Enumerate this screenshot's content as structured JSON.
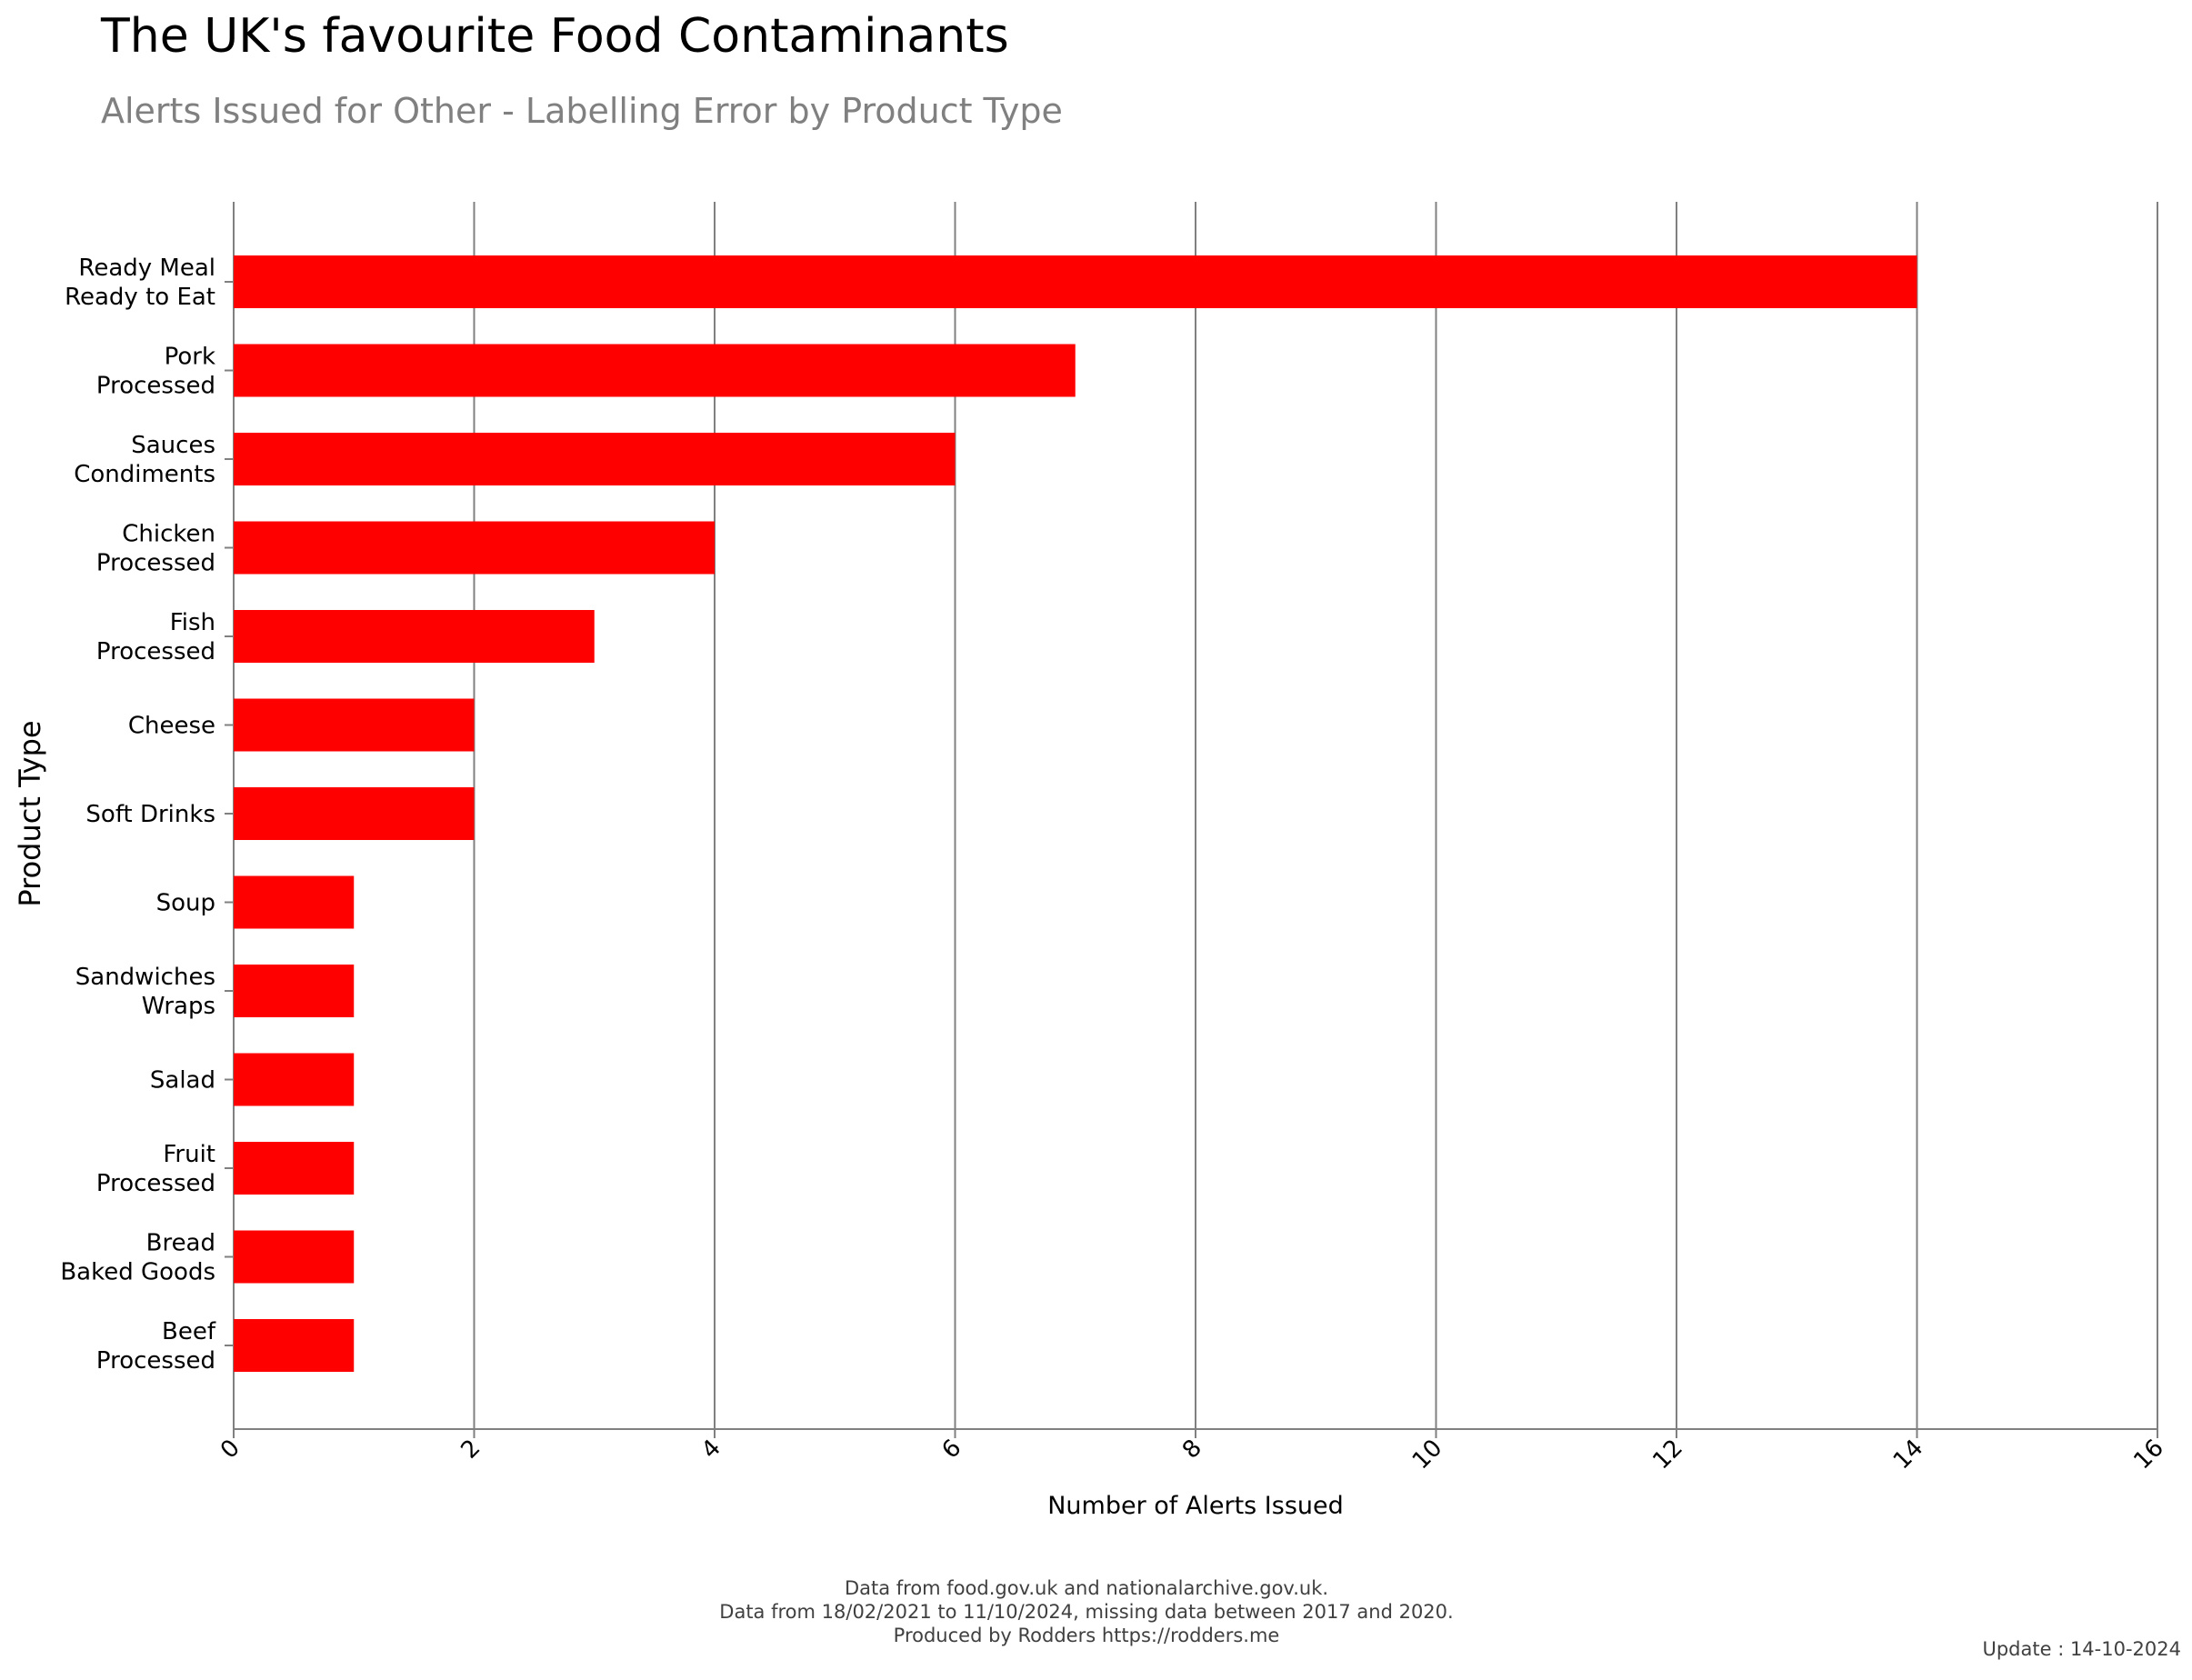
{
  "header": {
    "title": "The UK's favourite Food Contaminants",
    "subtitle": "Alerts Issued for Other - Labelling Error by Product Type"
  },
  "footer": {
    "line1": "Data from food.gov.uk and nationalarchive.gov.uk.",
    "line2": "Data from 18/02/2021 to 11/10/2024, missing data between 2017 and 2020.",
    "line3": "Produced by Rodders https://rodders.me",
    "update": "Update : 14-10-2024"
  },
  "chart_data": {
    "type": "bar",
    "orientation": "horizontal",
    "title": "The UK's favourite Food Contaminants",
    "subtitle": "Alerts Issued for Other - Labelling Error by Product Type",
    "xlabel": "Number of Alerts Issued",
    "ylabel": "Product Type",
    "xlim": [
      0,
      16
    ],
    "xticks": [
      0,
      2,
      4,
      6,
      8,
      10,
      12,
      14,
      16
    ],
    "grid": "vertical",
    "bar_color": "#ff0000",
    "grid_color": "#808080",
    "categories": [
      [
        "Ready Meal",
        "Ready to Eat"
      ],
      [
        "Pork",
        "Processed"
      ],
      [
        "Sauces",
        "Condiments"
      ],
      [
        "Chicken",
        "Processed"
      ],
      [
        "Fish",
        "Processed"
      ],
      [
        "Cheese"
      ],
      [
        "Soft Drinks"
      ],
      [
        "Soup"
      ],
      [
        "Sandwiches",
        "Wraps"
      ],
      [
        "Salad"
      ],
      [
        "Fruit",
        "Processed"
      ],
      [
        "Bread",
        "Baked Goods"
      ],
      [
        "Beef",
        "Processed"
      ]
    ],
    "values": [
      14,
      7,
      6,
      4,
      3,
      2,
      2,
      1,
      1,
      1,
      1,
      1,
      1
    ]
  }
}
